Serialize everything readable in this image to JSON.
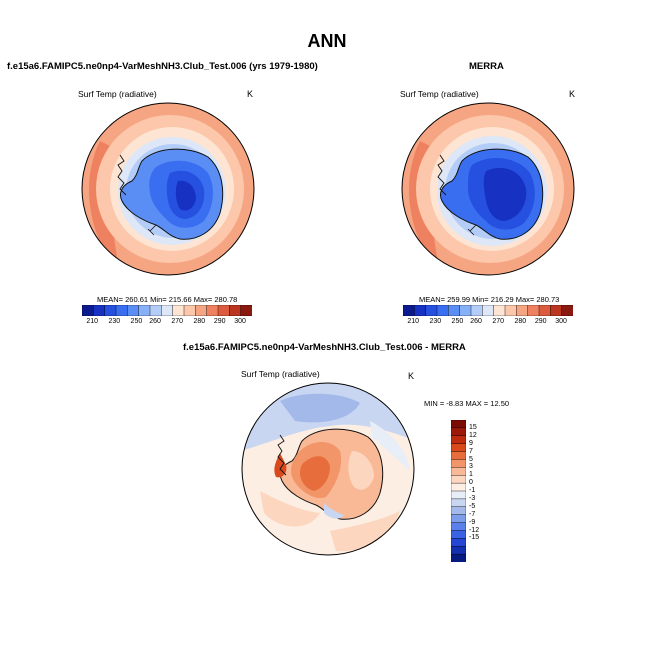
{
  "figure": {
    "title": "ANN",
    "diff_title": "f.e15a6.FAMIPC5.ne0np4-VarMeshNH3.Club_Test.006 - MERRA"
  },
  "panels": {
    "model": {
      "title": "f.e15a6.FAMIPC5.ne0np4-VarMeshNH3.Club_Test.006 (yrs 1979-1980)",
      "variable": "Surf Temp (radiative)",
      "units": "K",
      "stats_text": "MEAN= 260.61   Min= 215.66   Max= 280.78",
      "mean": 260.61,
      "min": 215.66,
      "max": 280.78
    },
    "obs": {
      "title": "MERRA",
      "variable": "Surf Temp (radiative)",
      "units": "K",
      "stats_text": "MEAN= 259.99   Min= 216.29   Max= 280.73",
      "mean": 259.99,
      "min": 216.29,
      "max": 280.73
    },
    "diff": {
      "variable": "Surf Temp (radiative)",
      "units": "K",
      "stats_text": "MIN =  -8.83 MAX =  12.50",
      "min": -8.83,
      "max": 12.5
    }
  },
  "colorbars": {
    "abs_colors": [
      "#0c1a8f",
      "#1732c2",
      "#2550e0",
      "#3a6ef0",
      "#5a8ef5",
      "#86b0f8",
      "#b4cdf8",
      "#dde7f7",
      "#fde4d3",
      "#fcc7aa",
      "#f6a583",
      "#ee8160",
      "#dc5a3e",
      "#bb3521",
      "#8a1a10"
    ],
    "abs_ticks": [
      "210",
      "230",
      "250",
      "260",
      "270",
      "280",
      "290",
      "300"
    ],
    "diff_colors": [
      "#081a80",
      "#142fb0",
      "#2546d2",
      "#3b62e4",
      "#5b80ec",
      "#7d9ce9",
      "#a2b9ea",
      "#c8d6f1",
      "#e8eef8",
      "#fdeee3",
      "#fdd6bf",
      "#f9b896",
      "#f29568",
      "#e86d3c",
      "#d9491c",
      "#bf2b0e",
      "#9c1808",
      "#7a0c04"
    ],
    "diff_ticks": [
      "15",
      "12",
      "9",
      "7",
      "5",
      "3",
      "1",
      "0",
      "-1",
      "-3",
      "-5",
      "-7",
      "-9",
      "-12",
      "-15"
    ]
  }
}
